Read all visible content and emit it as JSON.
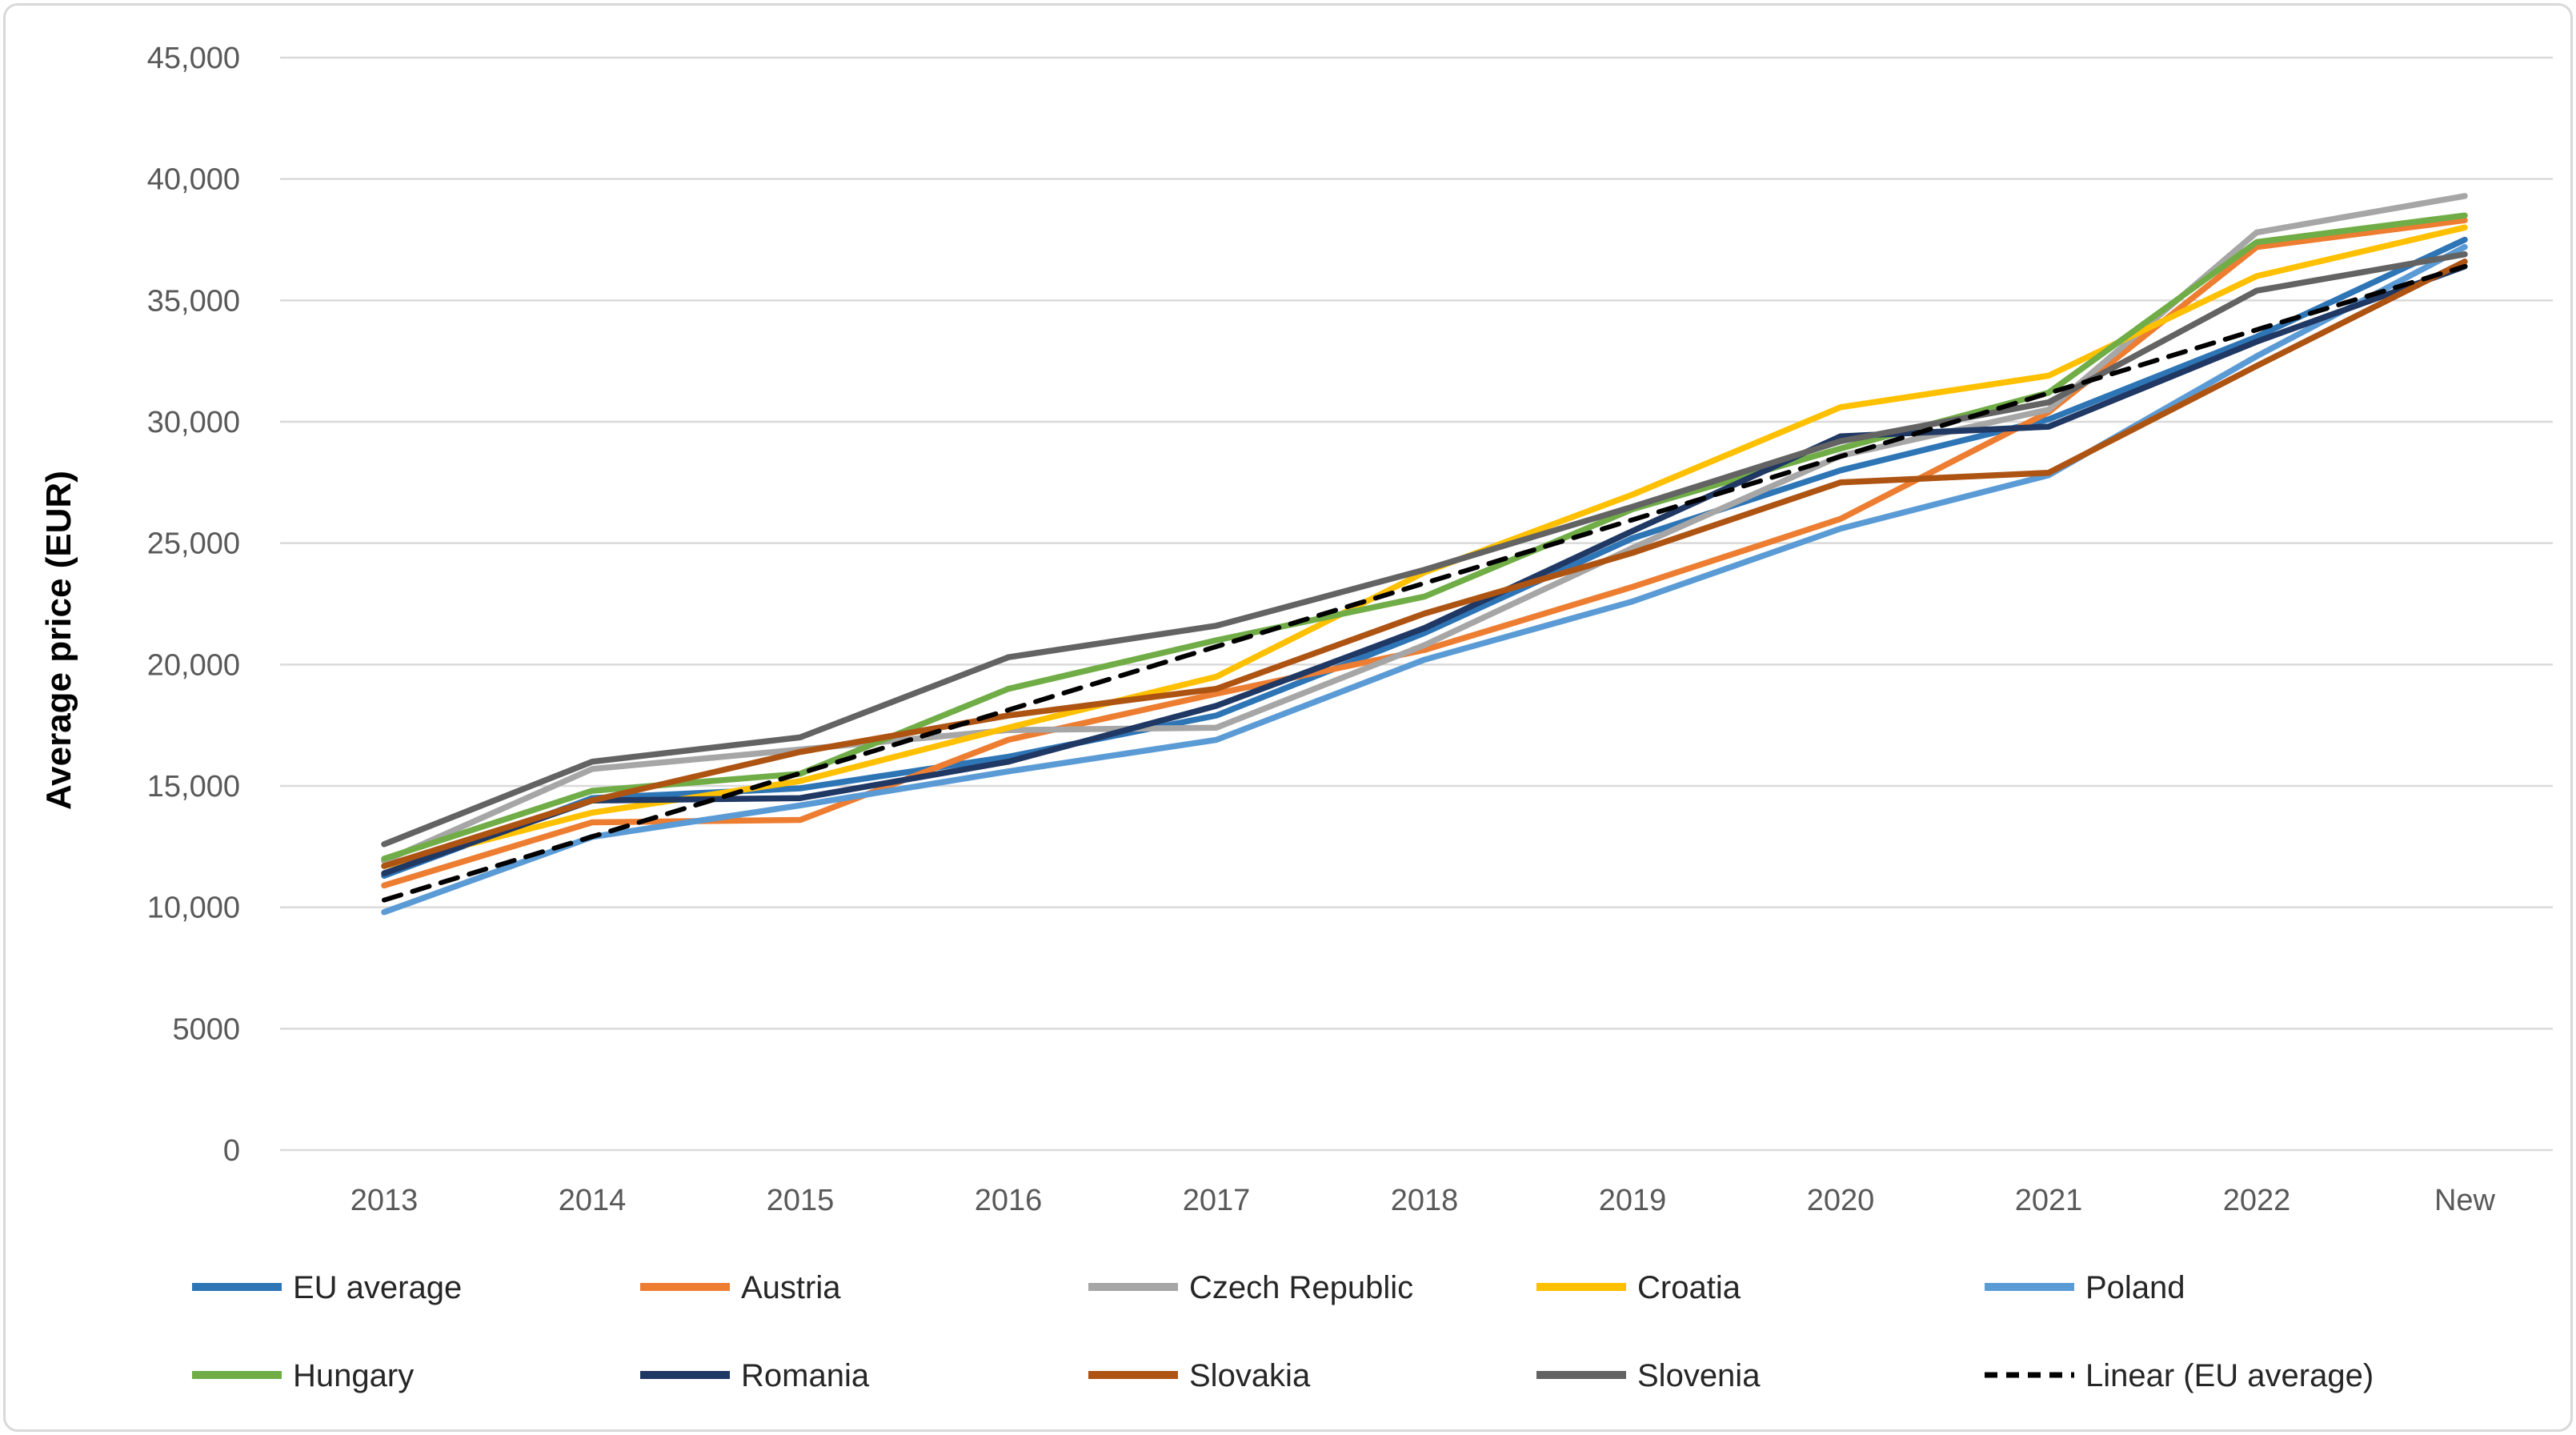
{
  "chart_data": {
    "type": "line",
    "title": "",
    "xlabel": "",
    "ylabel": "Average price (EUR)",
    "ylim": [
      0,
      45000
    ],
    "grid": "horizontal",
    "grid_color": "#d9d9d9",
    "tick_color": "#595959",
    "categories": [
      "2013",
      "2014",
      "2015",
      "2016",
      "2017",
      "2018",
      "2019",
      "2020",
      "2021",
      "2022",
      "New"
    ],
    "yticks": [
      0,
      5000,
      10000,
      15000,
      20000,
      25000,
      30000,
      35000,
      40000,
      45000
    ],
    "ytick_labels": [
      "0",
      "5000",
      "10,000",
      "15,000",
      "20,000",
      "25,000",
      "30,000",
      "35,000",
      "40,000",
      "45,000"
    ],
    "series": [
      {
        "name": "EU average",
        "color": "#2e75b6",
        "dash": false,
        "values": [
          11300,
          14500,
          14900,
          16200,
          17900,
          21300,
          25200,
          28000,
          30100,
          33500,
          37500
        ]
      },
      {
        "name": "Austria",
        "color": "#ed7d31",
        "dash": false,
        "values": [
          10900,
          13500,
          13600,
          16900,
          18800,
          20600,
          23200,
          26000,
          30400,
          37200,
          38300
        ]
      },
      {
        "name": "Czech Republic",
        "color": "#a6a6a6",
        "dash": false,
        "values": [
          11900,
          15700,
          16500,
          17300,
          17400,
          20800,
          24800,
          28600,
          30500,
          37800,
          39300
        ]
      },
      {
        "name": "Croatia",
        "color": "#ffc000",
        "dash": false,
        "values": [
          11700,
          13900,
          15200,
          17400,
          19500,
          23800,
          27000,
          30600,
          31900,
          36000,
          38000
        ]
      },
      {
        "name": "Poland",
        "color": "#5b9bd5",
        "dash": false,
        "values": [
          9800,
          12900,
          14200,
          15600,
          16900,
          20200,
          22600,
          25600,
          27800,
          32700,
          37200
        ]
      },
      {
        "name": "Hungary",
        "color": "#70ad47",
        "dash": false,
        "values": [
          12000,
          14800,
          15500,
          19000,
          21000,
          22800,
          26400,
          28900,
          31200,
          37400,
          38500
        ]
      },
      {
        "name": "Romania",
        "color": "#203864",
        "dash": false,
        "values": [
          11400,
          14400,
          14500,
          16000,
          18300,
          21500,
          25500,
          29400,
          29800,
          33300,
          36400
        ]
      },
      {
        "name": "Slovakia",
        "color": "#ae5413",
        "dash": false,
        "values": [
          11700,
          14400,
          16400,
          17900,
          19000,
          22100,
          24600,
          27500,
          27900,
          32300,
          36600
        ]
      },
      {
        "name": "Slovenia",
        "color": "#636363",
        "dash": false,
        "values": [
          12600,
          16000,
          17000,
          20300,
          21600,
          23900,
          26500,
          29200,
          30800,
          35400,
          36900
        ]
      },
      {
        "name": "Linear (EU average)",
        "color": "#000000",
        "dash": true,
        "values": [
          10300,
          12910,
          15520,
          18130,
          20740,
          23350,
          25960,
          28570,
          31180,
          33790,
          36400
        ]
      }
    ],
    "legend": {
      "position": "bottom",
      "rows": [
        [
          "EU average",
          "Austria",
          "Czech Republic",
          "Croatia",
          "Poland"
        ],
        [
          "Hungary",
          "Romania",
          "Slovakia",
          "Slovenia",
          "Linear (EU average)"
        ]
      ]
    }
  },
  "layout_note": ""
}
